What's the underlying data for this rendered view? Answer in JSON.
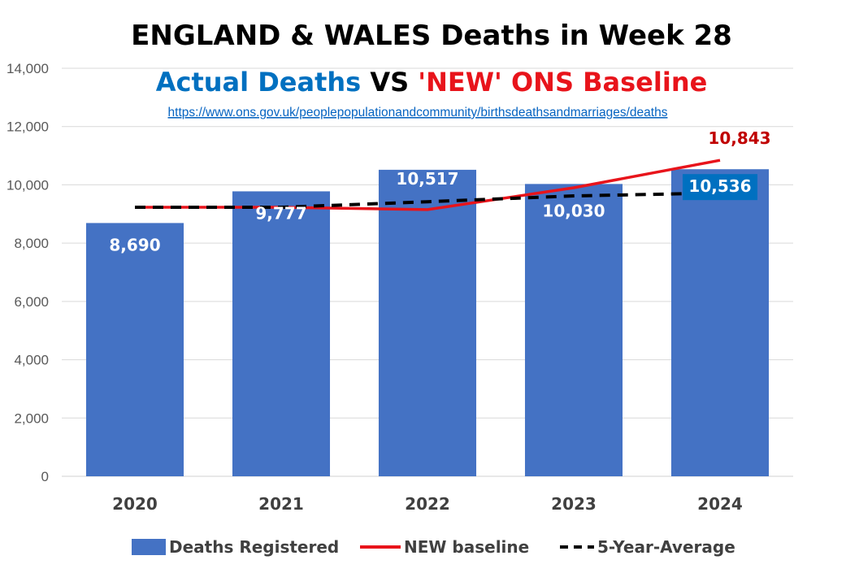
{
  "chart_data": {
    "type": "bar",
    "title": "ENGLAND & WALES Deaths in Week 28",
    "subtitle": {
      "part1": "Actual Deaths",
      "part2": " VS ",
      "part3": "'NEW' ONS Baseline"
    },
    "source_url": "https://www.ons.gov.uk/peoplepopulationandcommunity/birthsdeathsandmarriages/deaths",
    "categories": [
      "2020",
      "2021",
      "2022",
      "2023",
      "2024"
    ],
    "ylim": [
      0,
      14000
    ],
    "yticks": [
      "0",
      "2,000",
      "4,000",
      "6,000",
      "8,000",
      "10,000",
      "12,000",
      "14,000"
    ],
    "grid": true,
    "legend_position": "bottom",
    "series": [
      {
        "name": "Deaths Registered",
        "kind": "bar",
        "color": "#4472c4",
        "values": [
          8690,
          9777,
          10517,
          10030,
          10536
        ],
        "labels": [
          "8,690",
          "9,777",
          "10,517",
          "10,030",
          "10,536"
        ]
      },
      {
        "name": "NEW baseline",
        "kind": "line",
        "color": "#e8141b",
        "values": [
          9230,
          9230,
          9150,
          9900,
          10843
        ],
        "end_label": "10,843"
      },
      {
        "name": "5-Year-Average",
        "kind": "dashed-line",
        "color": "#000000",
        "values": [
          9230,
          9230,
          9420,
          9620,
          9720
        ]
      }
    ]
  }
}
